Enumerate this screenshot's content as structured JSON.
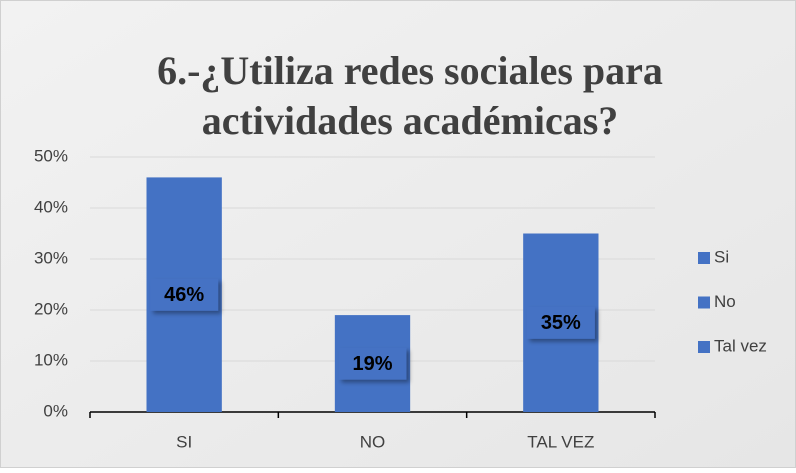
{
  "chart_data": {
    "type": "bar",
    "title": "6.-¿Utiliza redes sociales para actividades académicas?",
    "categories": [
      "SI",
      "NO",
      "TAL VEZ"
    ],
    "series": [
      {
        "name": "Si",
        "color": "#4472c4",
        "values": [
          46,
          null,
          null
        ],
        "value_labels": [
          "46%",
          null,
          null
        ]
      },
      {
        "name": "No",
        "color": "#4472c4",
        "values": [
          null,
          19,
          null
        ],
        "value_labels": [
          null,
          "19%",
          null
        ]
      },
      {
        "name": "Tal vez",
        "color": "#4472c4",
        "values": [
          null,
          null,
          35
        ],
        "value_labels": [
          null,
          null,
          "35%"
        ]
      }
    ],
    "ylim": [
      0,
      50
    ],
    "yticks": [
      {
        "value": 0,
        "label": "0%"
      },
      {
        "value": 10,
        "label": "10%"
      },
      {
        "value": 20,
        "label": "20%"
      },
      {
        "value": 30,
        "label": "30%"
      },
      {
        "value": 40,
        "label": "40%"
      },
      {
        "value": 50,
        "label": "50%"
      }
    ],
    "grid": true,
    "legend": "right"
  }
}
